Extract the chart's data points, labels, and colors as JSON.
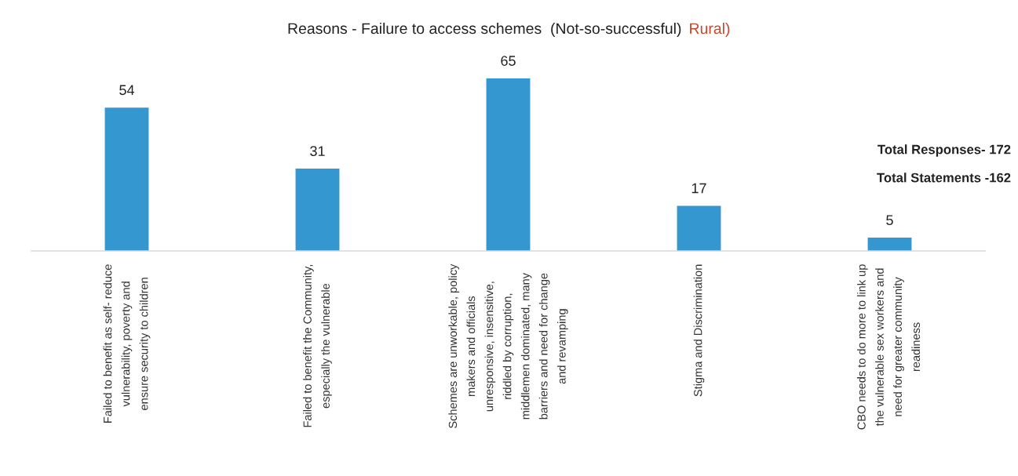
{
  "chart_data": {
    "type": "bar",
    "title": "Reasons - Failure to access schemes  (Not-so-successful)",
    "subtitle": "Rural)",
    "categories": [
      "Failed to benefit as self- reduce\nvulnerability, poverty and\nensure security to children",
      "Failed to benefit the Community,\nespecially the vulnerable",
      "Schemes are unworkable, policy\nmakers and officials\nunresponsive, insensitive,\nriddled by corruption,\nmiddlemen dominated, many\nbarriers and need for change\nand revamping",
      "Stigma and Discrimination",
      "CBO needs to do more to link up\nthe vulnerable sex workers and\nneed for greater community\nreadiness"
    ],
    "values": [
      54,
      31,
      65,
      17,
      5
    ],
    "color": "#3597cf",
    "data_labels": true,
    "tick_labels": "x",
    "annotations": [
      "Total Responses- 172",
      "Total Statements -162"
    ]
  }
}
